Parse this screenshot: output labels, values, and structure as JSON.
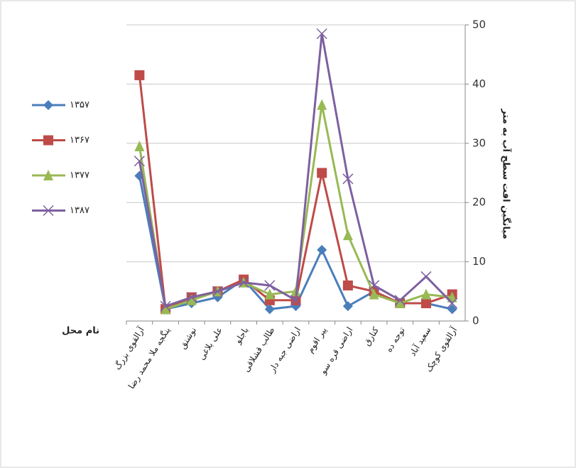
{
  "chart_data": {
    "type": "line",
    "y_axis_label": "میانگین افت سطح آب به متر",
    "x_axis_label": "نام محل",
    "categories": [
      "آرالقوی بزرگ",
      "ینگجه ملا محمد رضا",
      "نوشنق",
      "علی بلاغی",
      "باجلو",
      "طالب قشلاقی",
      "اراضی جبه دار",
      "پیر اقوم",
      "اراضی قره سو",
      "کنارق",
      "توجه ده",
      "سعید آباد",
      "آرالقوی کوچک"
    ],
    "series": [
      {
        "name": "۱۳۵۷",
        "color": "#4a7ebb",
        "marker": "diamond",
        "values": [
          24.5,
          2,
          3,
          4,
          7,
          2,
          2.5,
          12,
          2.5,
          5,
          3,
          3,
          2
        ]
      },
      {
        "name": "۱۳۶۷",
        "color": "#be4b48",
        "marker": "square",
        "values": [
          41.5,
          2,
          4,
          5,
          7,
          3.5,
          3.5,
          25,
          6,
          5,
          3,
          3,
          4.5
        ]
      },
      {
        "name": "۱۳۷۷",
        "color": "#98b954",
        "marker": "triangle",
        "values": [
          29.5,
          2,
          3.5,
          5,
          6.5,
          4.5,
          5,
          36.5,
          14.5,
          4.5,
          3,
          4.5,
          4
        ]
      },
      {
        "name": "۱۳۸۷",
        "color": "#7d60a0",
        "marker": "x",
        "values": [
          27,
          2.5,
          4,
          5,
          6.5,
          6,
          3.5,
          48.5,
          24,
          6,
          3.5,
          7.5,
          3
        ]
      }
    ],
    "ylim": [
      0,
      50
    ],
    "yticks": [
      0,
      10,
      20,
      30,
      40,
      50
    ],
    "grid": true,
    "y_axis_side": "right",
    "legend_position": "left"
  }
}
